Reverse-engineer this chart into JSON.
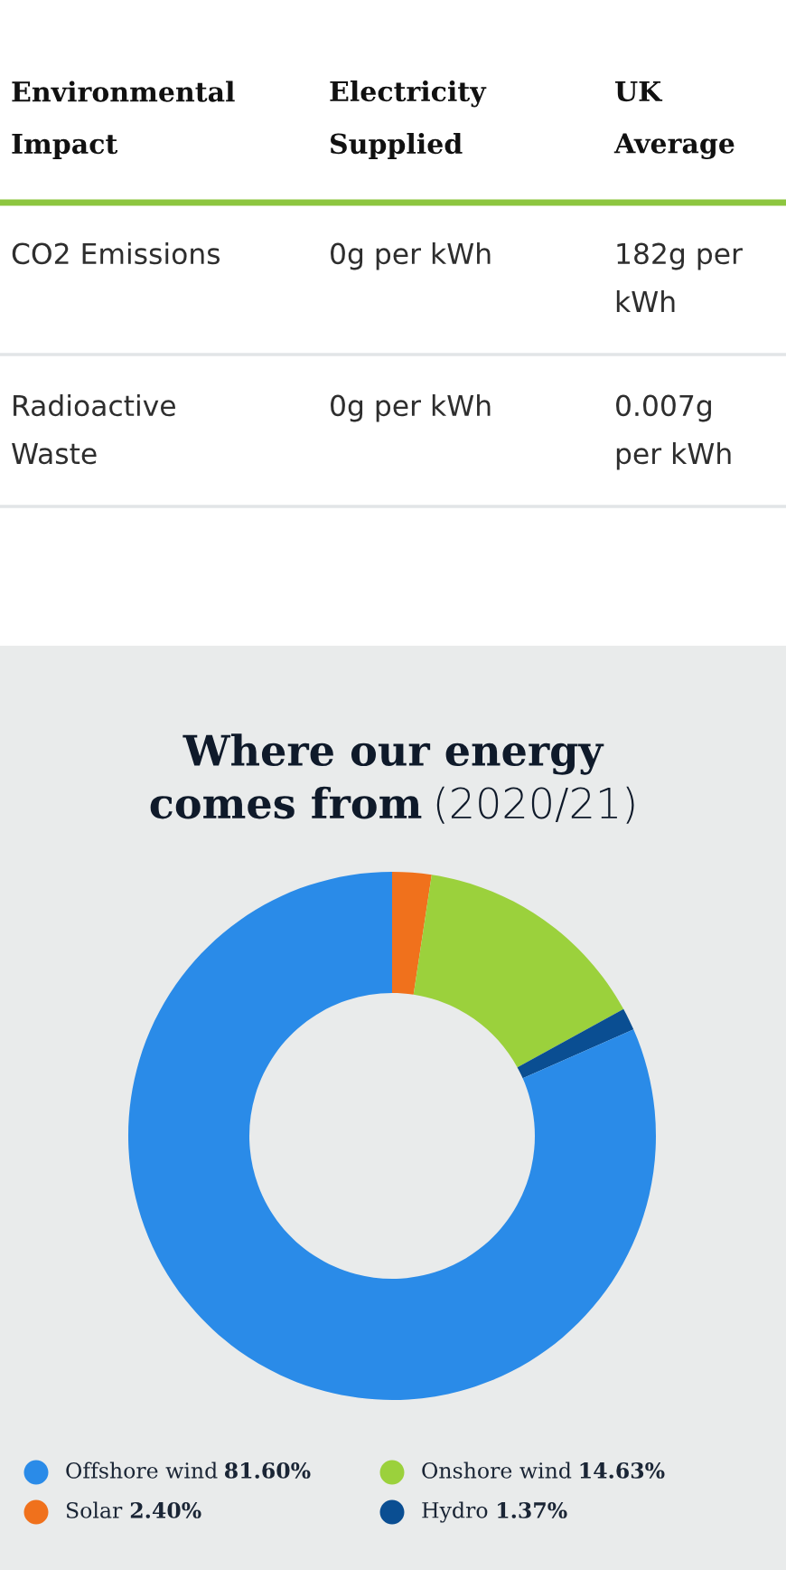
{
  "chart_data": [
    {
      "type": "other",
      "annotations": [
        "Environmental\nImpact",
        "Electricity\nSupplied",
        "UK\nAverage",
        "CO2 Emissions",
        "0g per kWh",
        "182g per\nkWh",
        "Radioactive\nWaste",
        "0g per kWh",
        "0.007g\nper kWh"
      ]
    },
    {
      "type": "donut",
      "title": "Where our energy\ncomes from",
      "subtitle": "(2020/21)",
      "categories": [
        "Solar",
        "Onshore wind",
        "Hydro",
        "Offshore wind"
      ],
      "values": [
        2.4,
        14.63,
        1.37,
        81.6
      ],
      "colors": [
        "#f0711c",
        "#9bd13c",
        "#0a4e92",
        "#2a8be8"
      ],
      "value_labels": [
        "2.40%",
        "14.63%",
        "1.37%",
        "81.60%"
      ],
      "legend": "bottom"
    }
  ]
}
